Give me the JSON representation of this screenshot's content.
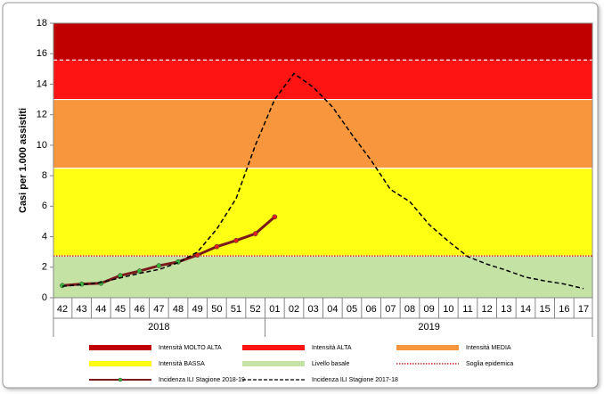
{
  "chart_data": {
    "type": "line",
    "y_label": "Casi per 1.000 assistiti",
    "categories": [
      "42",
      "43",
      "44",
      "45",
      "46",
      "47",
      "48",
      "49",
      "50",
      "51",
      "52",
      "01",
      "02",
      "03",
      "04",
      "05",
      "06",
      "07",
      "08",
      "09",
      "10",
      "11",
      "12",
      "13",
      "14",
      "15",
      "16",
      "17"
    ],
    "year_groups": [
      {
        "label": "2018",
        "start": 0,
        "end": 10
      },
      {
        "label": "2019",
        "start": 11,
        "end": 27
      }
    ],
    "ylim": [
      0,
      18
    ],
    "yticks": [
      0,
      2,
      4,
      6,
      8,
      10,
      12,
      14,
      16,
      18
    ],
    "bands": [
      {
        "name": "Intensità MOLTO ALTA",
        "color": "#c00000",
        "from": 15.58,
        "to": 18
      },
      {
        "name": "Intensità ALTA",
        "color": "#ff1414",
        "from": 13.0,
        "to": 15.58,
        "top_edge": "dashed"
      },
      {
        "name": "Intensità MEDIA",
        "color": "#f7963c",
        "from": 8.49,
        "to": 13.0
      },
      {
        "name": "Intensità BASSA",
        "color": "#ffff14",
        "from": 2.74,
        "to": 8.49
      },
      {
        "name": "Livello basale",
        "color": "#c4e2a4",
        "from": 0,
        "to": 2.74
      }
    ],
    "threshold": {
      "name": "Soglia epidemica",
      "value": 2.74,
      "color": "#c00000"
    },
    "series": [
      {
        "name": "Incidenza ILI Stagione 2018-19",
        "color": "#000000",
        "line_color": "#7a1a1a",
        "style": "solid",
        "marker_colors": [
          "#3cb43c",
          "#3cb43c",
          "#3cb43c",
          "#3cb43c",
          "#3cb43c",
          "#3cb43c",
          "#3cb43c",
          "#e02020",
          "#e02020",
          "#e02020",
          "#e02020",
          "#e02020"
        ],
        "values": [
          0.8,
          0.9,
          0.95,
          1.45,
          1.75,
          2.1,
          2.35,
          2.8,
          3.35,
          3.75,
          4.2,
          5.3,
          null,
          null,
          null,
          null,
          null,
          null,
          null,
          null,
          null,
          null,
          null,
          null,
          null,
          null,
          null,
          null
        ]
      },
      {
        "name": "Incidenza ILI Stagione 2017-18",
        "color": "#000000",
        "style": "dashed",
        "values": [
          0.75,
          0.85,
          1.0,
          1.3,
          1.6,
          1.85,
          2.3,
          3.0,
          4.5,
          6.5,
          10.0,
          13.0,
          14.7,
          13.8,
          12.5,
          10.7,
          9.0,
          7.1,
          6.3,
          4.8,
          3.7,
          2.7,
          2.2,
          1.8,
          1.35,
          1.1,
          0.9,
          0.6
        ]
      }
    ]
  }
}
